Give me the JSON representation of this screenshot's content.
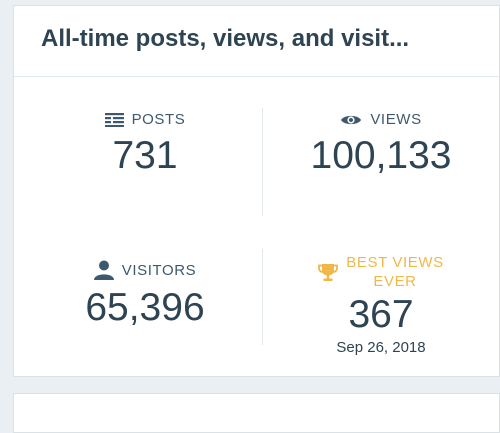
{
  "card": {
    "title": "All-time posts, views, and visit..."
  },
  "stats": {
    "posts": {
      "label": "POSTS",
      "value": "731",
      "icon": "posts-icon"
    },
    "views": {
      "label": "VIEWS",
      "value": "100,133",
      "icon": "eye-icon"
    },
    "visitors": {
      "label": "VISITORS",
      "value": "65,396",
      "icon": "person-icon"
    },
    "best": {
      "label_line1": "BEST VIEWS",
      "label_line2": "EVER",
      "value": "367",
      "date": "Sep 26, 2018",
      "icon": "trophy-icon"
    }
  },
  "colors": {
    "text": "#2e4453",
    "accent_gold": "#f0b849",
    "background": "#e9eff3"
  }
}
